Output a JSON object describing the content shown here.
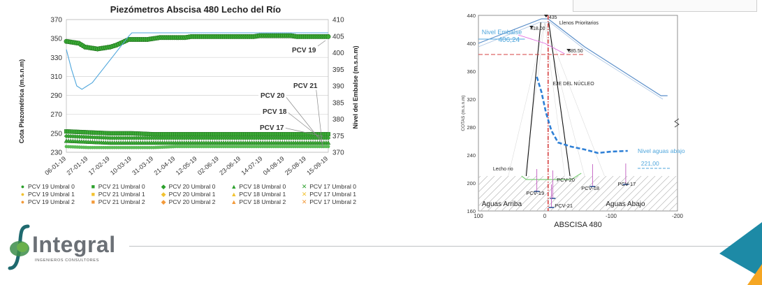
{
  "chart_data": [
    {
      "type": "scatter",
      "title": "Piezómetros Abscisa 480 Lecho del Río",
      "ylabel": "Cota Piezométrica (m.s.n.m)",
      "y2label": "Nivel del Embalse (m.s.n.m)",
      "ylim": [
        230,
        370
      ],
      "y2lim": [
        370,
        410
      ],
      "yticks": [
        "230",
        "250",
        "270",
        "290",
        "310",
        "330",
        "350",
        "370"
      ],
      "y2ticks": [
        "370",
        "375",
        "380",
        "385",
        "390",
        "395",
        "400",
        "405",
        "410"
      ],
      "xticks": [
        "06-01-19",
        "27-01-19",
        "17-02-19",
        "10-03-19",
        "31-03-19",
        "21-04-19",
        "12-05-19",
        "02-06-19",
        "23-06-19",
        "14-07-19",
        "04-08-19",
        "25-08-19",
        "15-09-19"
      ],
      "grid": true,
      "legend_position": "bottom",
      "annotations": [
        "PCV 19",
        "PCV 21",
        "PCV 20",
        "PCV 18",
        "PCV 17"
      ],
      "series": [
        {
          "name": "PCV 19 Umbral 0",
          "marker": "circle",
          "color": "#2ca02c",
          "axis": "left",
          "x": [
            0,
            6,
            12,
            18,
            24,
            30,
            36,
            42,
            48,
            54,
            60,
            66,
            72,
            78,
            84,
            90,
            96,
            102,
            108,
            114,
            120,
            126,
            132,
            138,
            144,
            150,
            156,
            162,
            168,
            174,
            180,
            186,
            192,
            198,
            204,
            210,
            216,
            222,
            228,
            234,
            240,
            246,
            252
          ],
          "y": [
            347,
            346,
            345,
            341,
            340,
            339,
            340,
            341,
            343,
            346,
            349,
            349,
            349,
            349,
            350,
            351,
            351,
            351,
            351,
            351,
            352,
            352,
            352,
            352,
            352,
            352,
            352,
            352,
            352,
            352,
            352,
            353,
            353,
            353,
            353,
            353,
            353,
            352,
            352,
            352,
            352,
            352,
            352
          ]
        },
        {
          "name": "PCV 21 Umbral 0",
          "marker": "square",
          "color": "#2ca02c",
          "axis": "left",
          "x": [
            0,
            21,
            42,
            63,
            84,
            105,
            126,
            147,
            168,
            189,
            210,
            231,
            252
          ],
          "y": [
            252,
            251,
            250,
            250,
            249,
            249,
            249,
            249,
            249,
            249,
            249,
            249,
            249
          ]
        },
        {
          "name": "PCV 20 Umbral 0",
          "marker": "diamond",
          "color": "#2ca02c",
          "axis": "left",
          "x": [
            0,
            21,
            42,
            63,
            84,
            105,
            126,
            147,
            168,
            189,
            210,
            231,
            252
          ],
          "y": [
            247,
            246,
            245,
            245,
            245,
            245,
            245,
            245,
            245,
            245,
            245,
            245,
            245
          ]
        },
        {
          "name": "PCV 18 Umbral 0",
          "marker": "triangle",
          "color": "#2ca02c",
          "axis": "left",
          "x": [
            0,
            21,
            42,
            63,
            84,
            105,
            126,
            147,
            168,
            189,
            210,
            231,
            252
          ],
          "y": [
            242,
            241,
            240,
            240,
            240,
            240,
            240,
            240,
            240,
            240,
            240,
            240,
            240
          ]
        },
        {
          "name": "PCV 17 Umbral 0",
          "marker": "x",
          "color": "#2ca02c",
          "axis": "left",
          "x": [
            0,
            21,
            42,
            63,
            84,
            105,
            126,
            147,
            168,
            189,
            210,
            231,
            252
          ],
          "y": [
            236,
            235,
            235,
            235,
            235,
            236,
            236,
            236,
            236,
            236,
            236,
            236,
            236
          ]
        },
        {
          "name": "Nivel Embalse",
          "marker": "line",
          "color": "#4fa6dc",
          "axis": "right",
          "x": [
            0,
            5,
            10,
            15,
            20,
            25,
            30,
            35,
            40,
            45,
            50,
            55,
            60,
            63,
            70,
            80,
            100,
            120,
            140,
            160,
            180,
            200,
            220,
            240,
            252
          ],
          "y": [
            401,
            395,
            390,
            389,
            390,
            391,
            393,
            395,
            397,
            399,
            401,
            403,
            405,
            406,
            406,
            406,
            406,
            406,
            406,
            406,
            406,
            406,
            406,
            406,
            406
          ]
        }
      ],
      "legend": [
        {
          "label": "PCV 19 Umbral 0",
          "marker": "●",
          "color": "#2ca02c"
        },
        {
          "label": "PCV 21 Umbral 0",
          "marker": "■",
          "color": "#2ca02c"
        },
        {
          "label": "PCV 20 Umbral 0",
          "marker": "◆",
          "color": "#2ca02c"
        },
        {
          "label": "PCV 18 Umbral 0",
          "marker": "▲",
          "color": "#2ca02c"
        },
        {
          "label": "PCV 17 Umbral 0",
          "marker": "✕",
          "color": "#2ca02c"
        },
        {
          "label": "PCV 19 Umbral 1",
          "marker": "●",
          "color": "#f2c230"
        },
        {
          "label": "PCV 21 Umbral 1",
          "marker": "■",
          "color": "#f2c230"
        },
        {
          "label": "PCV 20 Umbral 1",
          "marker": "◆",
          "color": "#f2c230"
        },
        {
          "label": "PCV 18 Umbral 1",
          "marker": "▲",
          "color": "#f2c230"
        },
        {
          "label": "PCV 17 Umbral 1",
          "marker": "✕",
          "color": "#f2c230"
        },
        {
          "label": "PCV 19 Umbral 2",
          "marker": "●",
          "color": "#f39a3a"
        },
        {
          "label": "PCV 21 Umbral 2",
          "marker": "■",
          "color": "#f39a3a"
        },
        {
          "label": "PCV 20 Umbral 2",
          "marker": "◆",
          "color": "#f39a3a"
        },
        {
          "label": "PCV 18 Umbral 2",
          "marker": "▲",
          "color": "#f39a3a"
        },
        {
          "label": "PCV 17 Umbral 2",
          "marker": "✕",
          "color": "#f39a3a"
        }
      ]
    },
    {
      "type": "diagram",
      "xlabel": "ABSCISA 480",
      "ylabel": "COTAS (m.s.n.m)",
      "xlim": [
        100,
        -200
      ],
      "ylim": [
        160,
        440
      ],
      "xticks": [
        "100",
        "0",
        "-100",
        "-200"
      ],
      "yticks": [
        "160",
        "200",
        "240",
        "280",
        "320",
        "360",
        "400",
        "440"
      ],
      "labels": {
        "crest": "435",
        "fill_level": "418.00",
        "fill_note": "Llenos Prioritarios",
        "reservoir_label": "Nivel Embalse",
        "reservoir_value": "406,24",
        "berm": "385.50",
        "core_axis": "EJE DEL NÚCLEO",
        "riverbed": "Lecho rio",
        "downstream_label": "Nivel aguas abajo",
        "downstream_value": "221,00",
        "upstream": "Aguas Arriba",
        "downstream": "Aguas Abajo",
        "pcv19": "PCV-19",
        "pcv20": "PCV-20",
        "pcv21": "PCV-21",
        "pcv18": "PCV-18",
        "pcv17": "PCV-17"
      },
      "phreatic_line": {
        "x": [
          12,
          5,
          -2,
          -10,
          -20,
          -40,
          -60,
          -80,
          -100,
          -125
        ],
        "y": [
          352,
          330,
          300,
          275,
          258,
          252,
          248,
          243,
          245,
          246
        ]
      }
    }
  ],
  "logo": {
    "word": "Integral",
    "subtitle": "INGENIEROS CONSULTORES"
  },
  "colors": {
    "green": "#2ca02c",
    "water": "#4fa6dc",
    "phreatic": "#2f80d6",
    "red": "#d64040",
    "accent_orange": "#f5a623",
    "accent_teal": "#1d8aa6"
  }
}
